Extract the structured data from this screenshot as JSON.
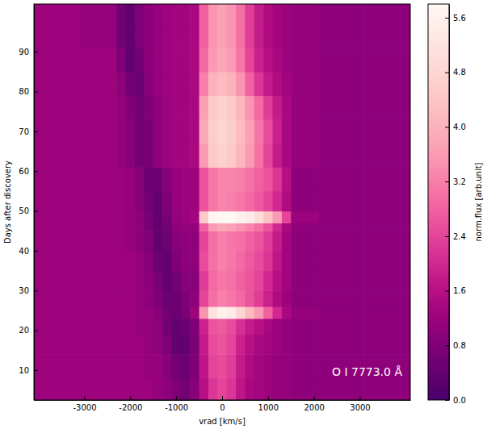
{
  "chart_data": {
    "type": "heatmap",
    "x_label": "vrad [km/s]",
    "y_label": "Days after discovery",
    "annotation": "O I 7773.0 Å",
    "colorbar_label": "norm.flux [arb.unit]",
    "xlim": [
      -4100,
      4100
    ],
    "ylim": [
      2.5,
      102
    ],
    "xticks": [
      -3000,
      -2000,
      -1000,
      0,
      1000,
      2000,
      3000
    ],
    "yticks": [
      10,
      20,
      30,
      40,
      50,
      60,
      70,
      80,
      90
    ],
    "x_edges": [
      -4100,
      -3100,
      -2300,
      -2100,
      -1900,
      -1700,
      -1500,
      -1300,
      -1100,
      -900,
      -700,
      -500,
      -300,
      -100,
      100,
      300,
      500,
      700,
      900,
      1100,
      1300,
      1500,
      2100,
      3100,
      4100
    ],
    "y_edges": [
      2.5,
      8,
      14,
      19,
      23,
      26,
      30,
      35,
      40,
      45,
      47,
      50,
      55,
      61,
      67,
      73,
      79,
      85,
      91,
      96,
      102
    ],
    "cells": [
      [
        1.2,
        1.2,
        1.2,
        1.2,
        1.2,
        1.2,
        1.1,
        1.0,
        0.8,
        0.6,
        0.9,
        1.6,
        2.2,
        2.4,
        2.2,
        1.7,
        1.4,
        1.3,
        1.2,
        1.1,
        1.1,
        1.0,
        1.0,
        1.0
      ],
      [
        1.2,
        1.2,
        1.2,
        1.2,
        1.2,
        1.1,
        1.1,
        0.9,
        0.6,
        0.5,
        0.8,
        1.7,
        2.4,
        2.5,
        2.3,
        1.8,
        1.5,
        1.3,
        1.2,
        1.1,
        1.1,
        1.0,
        1.0,
        1.0
      ],
      [
        1.2,
        1.2,
        1.2,
        1.2,
        1.2,
        1.1,
        1.0,
        0.8,
        0.4,
        0.4,
        0.7,
        1.8,
        2.5,
        2.6,
        2.4,
        1.9,
        1.6,
        1.4,
        1.3,
        1.2,
        1.1,
        1.0,
        1.0,
        1.0
      ],
      [
        1.2,
        1.2,
        1.2,
        1.2,
        1.1,
        1.1,
        1.0,
        0.6,
        0.4,
        0.5,
        0.8,
        1.9,
        2.6,
        2.7,
        2.5,
        2.1,
        1.8,
        1.6,
        1.4,
        1.2,
        1.1,
        1.0,
        1.0,
        1.0
      ],
      [
        1.2,
        1.2,
        1.2,
        1.2,
        1.1,
        1.1,
        0.9,
        0.6,
        0.5,
        0.7,
        1.2,
        3.5,
        5.2,
        5.6,
        5.4,
        4.8,
        4.2,
        3.6,
        2.8,
        2.0,
        1.4,
        1.1,
        1.0,
        1.0
      ],
      [
        1.2,
        1.2,
        1.2,
        1.2,
        1.1,
        1.0,
        0.8,
        0.5,
        0.5,
        0.8,
        1.0,
        2.4,
        3.0,
        3.2,
        3.1,
        2.9,
        2.6,
        2.3,
        1.9,
        1.5,
        1.2,
        1.0,
        1.0,
        1.0
      ],
      [
        1.2,
        1.2,
        1.2,
        1.2,
        1.1,
        1.0,
        0.7,
        0.4,
        0.6,
        0.9,
        0.9,
        2.3,
        2.9,
        3.1,
        3.0,
        2.8,
        2.6,
        2.4,
        2.0,
        1.6,
        1.3,
        1.0,
        1.0,
        1.0
      ],
      [
        1.2,
        1.2,
        1.2,
        1.2,
        1.1,
        0.9,
        0.5,
        0.4,
        0.8,
        1.0,
        1.0,
        2.5,
        3.0,
        3.2,
        3.1,
        2.9,
        2.7,
        2.5,
        2.2,
        1.7,
        1.3,
        1.0,
        1.0,
        1.0
      ],
      [
        1.2,
        1.2,
        1.2,
        1.1,
        1.0,
        0.8,
        0.4,
        0.5,
        0.9,
        1.0,
        1.0,
        2.4,
        3.0,
        3.2,
        3.1,
        3.0,
        2.8,
        2.6,
        2.3,
        1.8,
        1.3,
        1.0,
        1.0,
        1.0
      ],
      [
        1.2,
        1.2,
        1.2,
        1.1,
        1.0,
        0.7,
        0.4,
        0.6,
        1.0,
        1.1,
        1.1,
        2.8,
        3.6,
        3.8,
        3.7,
        3.5,
        3.3,
        3.0,
        2.6,
        2.0,
        1.4,
        1.0,
        1.0,
        1.0
      ],
      [
        1.2,
        1.2,
        1.2,
        1.1,
        1.0,
        0.7,
        0.4,
        0.7,
        1.1,
        1.2,
        1.3,
        4.5,
        5.7,
        5.8,
        5.8,
        5.6,
        5.4,
        5.0,
        4.4,
        3.6,
        2.4,
        1.2,
        1.0,
        1.0
      ],
      [
        1.2,
        1.2,
        1.2,
        1.1,
        0.9,
        0.6,
        0.4,
        0.8,
        1.1,
        1.2,
        1.2,
        2.6,
        3.1,
        3.3,
        3.2,
        3.1,
        2.9,
        2.7,
        2.4,
        2.0,
        1.5,
        1.0,
        1.0,
        1.0
      ],
      [
        1.2,
        1.2,
        1.2,
        1.1,
        0.9,
        0.5,
        0.5,
        0.9,
        1.1,
        1.2,
        1.2,
        2.6,
        3.1,
        3.3,
        3.3,
        3.2,
        3.0,
        2.8,
        2.6,
        2.2,
        1.6,
        1.0,
        1.0,
        1.0
      ],
      [
        1.2,
        1.2,
        1.1,
        0.9,
        0.6,
        0.7,
        1.0,
        1.2,
        1.3,
        1.3,
        1.4,
        3.6,
        4.5,
        4.7,
        4.5,
        4.1,
        3.6,
        3.0,
        2.4,
        1.8,
        1.4,
        1.1,
        1.0,
        1.0
      ],
      [
        1.2,
        1.2,
        1.1,
        0.9,
        0.6,
        0.7,
        1.0,
        1.2,
        1.3,
        1.3,
        1.4,
        3.8,
        4.6,
        4.8,
        4.6,
        4.2,
        3.7,
        3.1,
        2.5,
        1.9,
        1.4,
        1.1,
        1.0,
        1.0
      ],
      [
        1.2,
        1.2,
        1.1,
        0.8,
        0.6,
        0.8,
        1.0,
        1.2,
        1.3,
        1.3,
        1.4,
        3.7,
        4.5,
        4.7,
        4.5,
        4.1,
        3.5,
        2.9,
        2.3,
        1.8,
        1.4,
        1.1,
        1.0,
        1.0
      ],
      [
        1.2,
        1.2,
        1.0,
        0.6,
        0.5,
        0.9,
        1.1,
        1.2,
        1.3,
        1.3,
        1.4,
        3.2,
        4.0,
        4.2,
        4.0,
        3.5,
        2.8,
        2.2,
        1.8,
        1.5,
        1.3,
        1.1,
        1.0,
        1.0
      ],
      [
        1.2,
        1.2,
        0.8,
        0.4,
        0.6,
        1.0,
        1.1,
        1.2,
        1.3,
        1.3,
        1.4,
        2.9,
        3.6,
        3.8,
        3.6,
        3.1,
        2.4,
        1.9,
        1.6,
        1.4,
        1.2,
        1.1,
        1.0,
        1.0
      ],
      [
        1.2,
        1.1,
        0.6,
        0.4,
        0.8,
        1.0,
        1.1,
        1.2,
        1.3,
        1.3,
        1.4,
        2.8,
        3.5,
        3.7,
        3.5,
        3.0,
        2.3,
        1.8,
        1.5,
        1.3,
        1.2,
        1.1,
        1.0,
        1.0
      ],
      [
        1.2,
        1.1,
        0.6,
        0.4,
        0.8,
        1.0,
        1.1,
        1.2,
        1.3,
        1.3,
        1.4,
        2.8,
        3.5,
        3.7,
        3.5,
        3.0,
        2.3,
        1.8,
        1.5,
        1.3,
        1.2,
        1.1,
        1.0,
        1.0
      ]
    ],
    "colorbar_range": [
      0,
      5.8
    ],
    "colorbar_ticks": [
      {
        "value": 0,
        "label": "0.0"
      },
      0.8,
      1.6,
      2.4,
      3.2,
      {
        "value": 4,
        "label": "4.0"
      },
      4.8,
      5.6
    ]
  }
}
